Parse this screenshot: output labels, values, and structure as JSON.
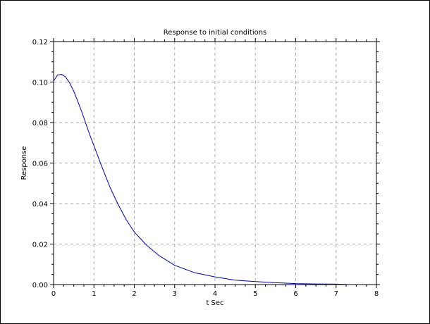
{
  "chart_data": {
    "type": "line",
    "title": "Response to initial conditions",
    "xlabel": "t Sec",
    "ylabel": "Response",
    "xlim": [
      0,
      8
    ],
    "ylim": [
      0,
      0.12
    ],
    "x_ticks": [
      "0",
      "1",
      "2",
      "3",
      "4",
      "5",
      "6",
      "7",
      "8"
    ],
    "y_ticks": [
      "0.00",
      "0.02",
      "0.04",
      "0.06",
      "0.08",
      "0.10",
      "0.12"
    ],
    "grid": true,
    "line_color": "#0000aa",
    "series": [
      {
        "x": [
          0,
          0.1,
          0.2,
          0.3,
          0.4,
          0.5,
          0.6,
          0.7,
          0.8,
          0.9,
          1.0,
          1.2,
          1.4,
          1.6,
          1.8,
          2.0,
          2.3,
          2.6,
          3.0,
          3.5,
          4.0,
          4.5,
          5.0,
          5.5,
          6.0,
          6.5,
          7.0,
          7.25
        ],
        "y": [
          0.1005,
          0.1035,
          0.1038,
          0.1025,
          0.0995,
          0.0955,
          0.0905,
          0.0852,
          0.0795,
          0.0738,
          0.0685,
          0.058,
          0.048,
          0.0395,
          0.032,
          0.026,
          0.0195,
          0.0145,
          0.0095,
          0.0058,
          0.0038,
          0.0022,
          0.0015,
          0.0009,
          0.0005,
          0.0003,
          0.0002,
          0.0001
        ]
      }
    ]
  }
}
